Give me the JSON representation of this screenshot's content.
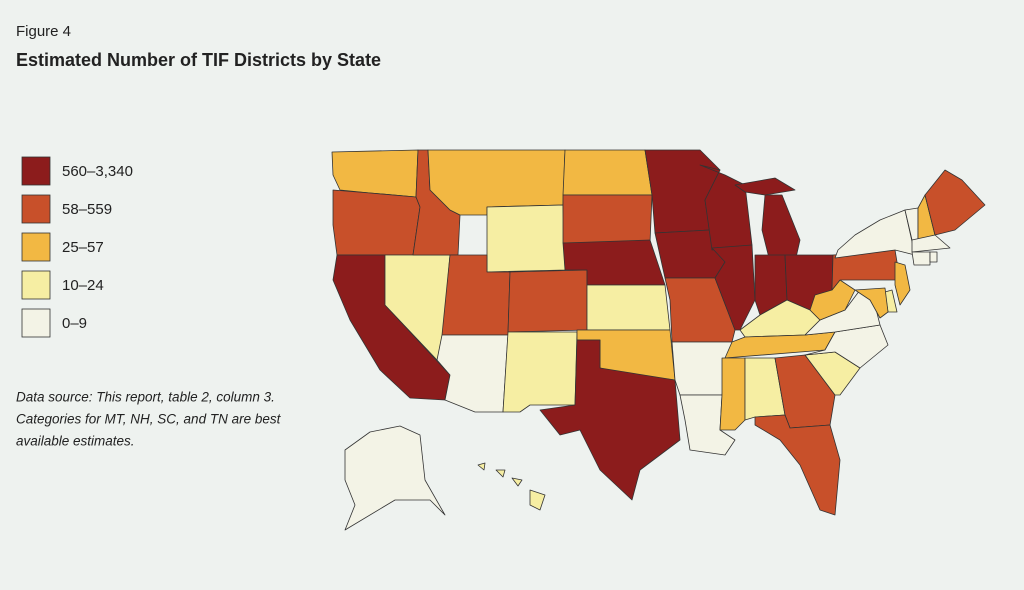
{
  "figure_label": "Figure 4",
  "title": "Estimated Number of TIF Districts by State",
  "legend": [
    {
      "label": "560–3,340",
      "color": "#8c1c1c"
    },
    {
      "label": "58–559",
      "color": "#c8502a"
    },
    {
      "label": "25–57",
      "color": "#f2b843"
    },
    {
      "label": "10–24",
      "color": "#f6eea3"
    },
    {
      "label": "0–9",
      "color": "#f3f3e6"
    }
  ],
  "note": [
    "Data source: This report, table 2, column 3.",
    "Categories for MT, NH, SC, and TN are best",
    "available estimates."
  ],
  "states": [
    2,
    1,
    0,
    3,
    1,
    2,
    3,
    1,
    4,
    1,
    3,
    2,
    1,
    0,
    3,
    2,
    0,
    0,
    0,
    1,
    4,
    4,
    0,
    0,
    0,
    0,
    0,
    3,
    2,
    2,
    3,
    1,
    1,
    3,
    4,
    4,
    2,
    1,
    4,
    4,
    2,
    1,
    4,
    4,
    4,
    2,
    3,
    2,
    4,
    3
  ]
}
